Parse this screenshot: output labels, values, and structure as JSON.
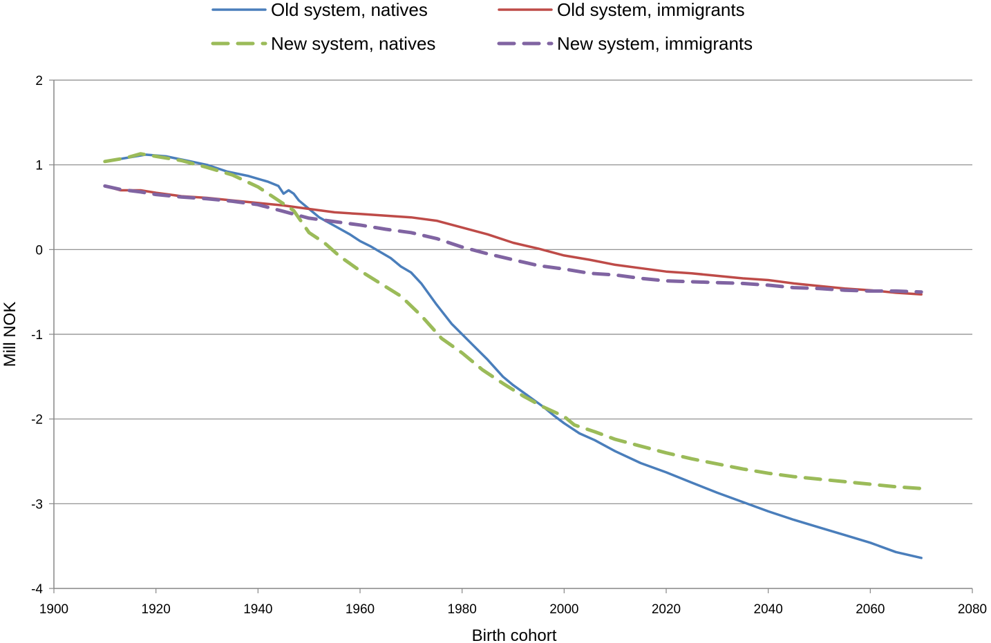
{
  "chart_data": {
    "type": "line",
    "title": "",
    "xlabel": "Birth cohort",
    "ylabel": "Mill NOK",
    "xlim": [
      1900,
      2080
    ],
    "ylim": [
      -4,
      2
    ],
    "xticks": [
      1900,
      1920,
      1940,
      1960,
      1980,
      2000,
      2020,
      2040,
      2060,
      2080
    ],
    "yticks": [
      -4,
      -3,
      -2,
      -1,
      0,
      1,
      2
    ],
    "grid": "horizontal",
    "legend_position": "top",
    "series": [
      {
        "name": "Old system, natives",
        "color": "#4a7ebb",
        "dash": "solid",
        "x": [
          1910,
          1914,
          1918,
          1922,
          1926,
          1930,
          1934,
          1938,
          1942,
          1944,
          1945,
          1946,
          1947,
          1948,
          1950,
          1952,
          1955,
          1958,
          1960,
          1962,
          1964,
          1966,
          1968,
          1970,
          1972,
          1975,
          1978,
          1980,
          1982,
          1985,
          1988,
          1990,
          1993,
          1996,
          1998,
          2000,
          2003,
          2006,
          2010,
          2015,
          2020,
          2025,
          2030,
          2035,
          2040,
          2045,
          2050,
          2055,
          2060,
          2065,
          2070
        ],
        "values": [
          1.04,
          1.08,
          1.12,
          1.1,
          1.05,
          1.0,
          0.92,
          0.87,
          0.8,
          0.75,
          0.66,
          0.7,
          0.66,
          0.58,
          0.48,
          0.38,
          0.28,
          0.18,
          0.1,
          0.04,
          -0.03,
          -0.1,
          -0.2,
          -0.27,
          -0.4,
          -0.65,
          -0.88,
          -1.0,
          -1.12,
          -1.3,
          -1.5,
          -1.6,
          -1.73,
          -1.86,
          -1.96,
          -2.05,
          -2.17,
          -2.25,
          -2.38,
          -2.52,
          -2.63,
          -2.75,
          -2.87,
          -2.98,
          -3.09,
          -3.19,
          -3.28,
          -3.37,
          -3.46,
          -3.57,
          -3.64
        ]
      },
      {
        "name": "Old system, immigrants",
        "color": "#be4b48",
        "dash": "solid",
        "x": [
          1910,
          1913,
          1917,
          1920,
          1925,
          1930,
          1935,
          1940,
          1945,
          1950,
          1955,
          1960,
          1965,
          1970,
          1975,
          1980,
          1985,
          1990,
          1995,
          2000,
          2005,
          2010,
          2015,
          2020,
          2025,
          2030,
          2035,
          2040,
          2045,
          2050,
          2055,
          2060,
          2065,
          2070
        ],
        "values": [
          0.75,
          0.7,
          0.7,
          0.67,
          0.63,
          0.61,
          0.58,
          0.55,
          0.52,
          0.48,
          0.44,
          0.42,
          0.4,
          0.38,
          0.34,
          0.26,
          0.18,
          0.08,
          0.01,
          -0.07,
          -0.12,
          -0.18,
          -0.22,
          -0.26,
          -0.28,
          -0.31,
          -0.34,
          -0.36,
          -0.4,
          -0.43,
          -0.46,
          -0.48,
          -0.51,
          -0.53
        ]
      },
      {
        "name": "New system, natives",
        "color": "#9bbb59",
        "dash": "dashed",
        "x": [
          1910,
          1914,
          1917,
          1920,
          1925,
          1930,
          1935,
          1940,
          1944,
          1947,
          1950,
          1953,
          1956,
          1960,
          1964,
          1968,
          1972,
          1976,
          1980,
          1984,
          1988,
          1992,
          1996,
          2000,
          2002,
          2006,
          2010,
          2015,
          2020,
          2025,
          2030,
          2035,
          2040,
          2045,
          2050,
          2055,
          2060,
          2065,
          2070
        ],
        "values": [
          1.04,
          1.08,
          1.13,
          1.1,
          1.05,
          0.97,
          0.88,
          0.74,
          0.58,
          0.46,
          0.2,
          0.08,
          -0.08,
          -0.25,
          -0.4,
          -0.55,
          -0.78,
          -1.05,
          -1.22,
          -1.42,
          -1.58,
          -1.73,
          -1.86,
          -1.97,
          -2.07,
          -2.15,
          -2.24,
          -2.32,
          -2.4,
          -2.47,
          -2.53,
          -2.59,
          -2.64,
          -2.68,
          -2.71,
          -2.74,
          -2.77,
          -2.8,
          -2.82
        ]
      },
      {
        "name": "New system, immigrants",
        "color": "#8064a2",
        "dash": "dashed",
        "x": [
          1910,
          1913,
          1917,
          1920,
          1925,
          1930,
          1935,
          1940,
          1945,
          1950,
          1955,
          1960,
          1965,
          1970,
          1975,
          1980,
          1985,
          1990,
          1995,
          2000,
          2005,
          2010,
          2015,
          2020,
          2025,
          2030,
          2035,
          2040,
          2045,
          2050,
          2055,
          2060,
          2065,
          2070
        ],
        "values": [
          0.75,
          0.71,
          0.68,
          0.65,
          0.62,
          0.6,
          0.57,
          0.53,
          0.45,
          0.37,
          0.33,
          0.29,
          0.24,
          0.2,
          0.13,
          0.03,
          -0.05,
          -0.12,
          -0.19,
          -0.23,
          -0.28,
          -0.3,
          -0.34,
          -0.37,
          -0.38,
          -0.39,
          -0.4,
          -0.42,
          -0.45,
          -0.46,
          -0.48,
          -0.49,
          -0.49,
          -0.5
        ]
      }
    ]
  }
}
